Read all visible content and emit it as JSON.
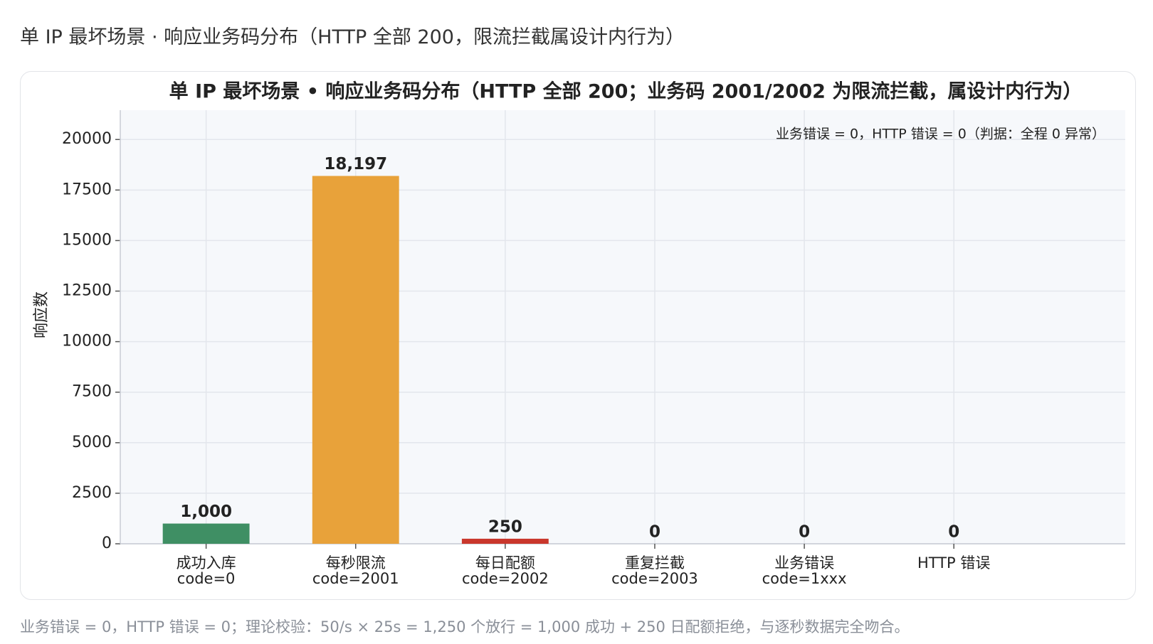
{
  "page_title": "单 IP 最坏场景 · 响应业务码分布（HTTP 全部 200，限流拦截属设计内行为）",
  "chart_data": {
    "type": "bar",
    "title": "单 IP 最坏场景 • 响应业务码分布（HTTP 全部 200；业务码 2001/2002 为限流拦截，属设计内行为）",
    "ylabel": "响应数",
    "annotation": "业务错误 = 0，HTTP 错误 = 0（判据：全程 0 异常）",
    "categories": [
      [
        "成功入库",
        "code=0"
      ],
      [
        "每秒限流",
        "code=2001"
      ],
      [
        "每日配额",
        "code=2002"
      ],
      [
        "重复拦截",
        "code=2003"
      ],
      [
        "业务错误",
        "code=1xxx"
      ],
      [
        "HTTP 错误"
      ]
    ],
    "values": [
      1000,
      18197,
      250,
      0,
      0,
      0
    ],
    "value_labels": [
      "1,000",
      "18,197",
      "250",
      "0",
      "0",
      "0"
    ],
    "colors": [
      "#3f8f64",
      "#e8a23a",
      "#c9372c",
      "#8e7cc3",
      "#d9534f",
      "#6c757d"
    ],
    "ylim": [
      0,
      21450
    ],
    "yticks": [
      0,
      2500,
      5000,
      7500,
      10000,
      12500,
      15000,
      17500,
      20000
    ],
    "grid": true
  },
  "caption": "业务错误 = 0，HTTP 错误 = 0；理论校验：50/s × 25s = 1,250 个放行 = 1,000 成功 + 250 日配额拒绝，与逐秒数据完全吻合。"
}
